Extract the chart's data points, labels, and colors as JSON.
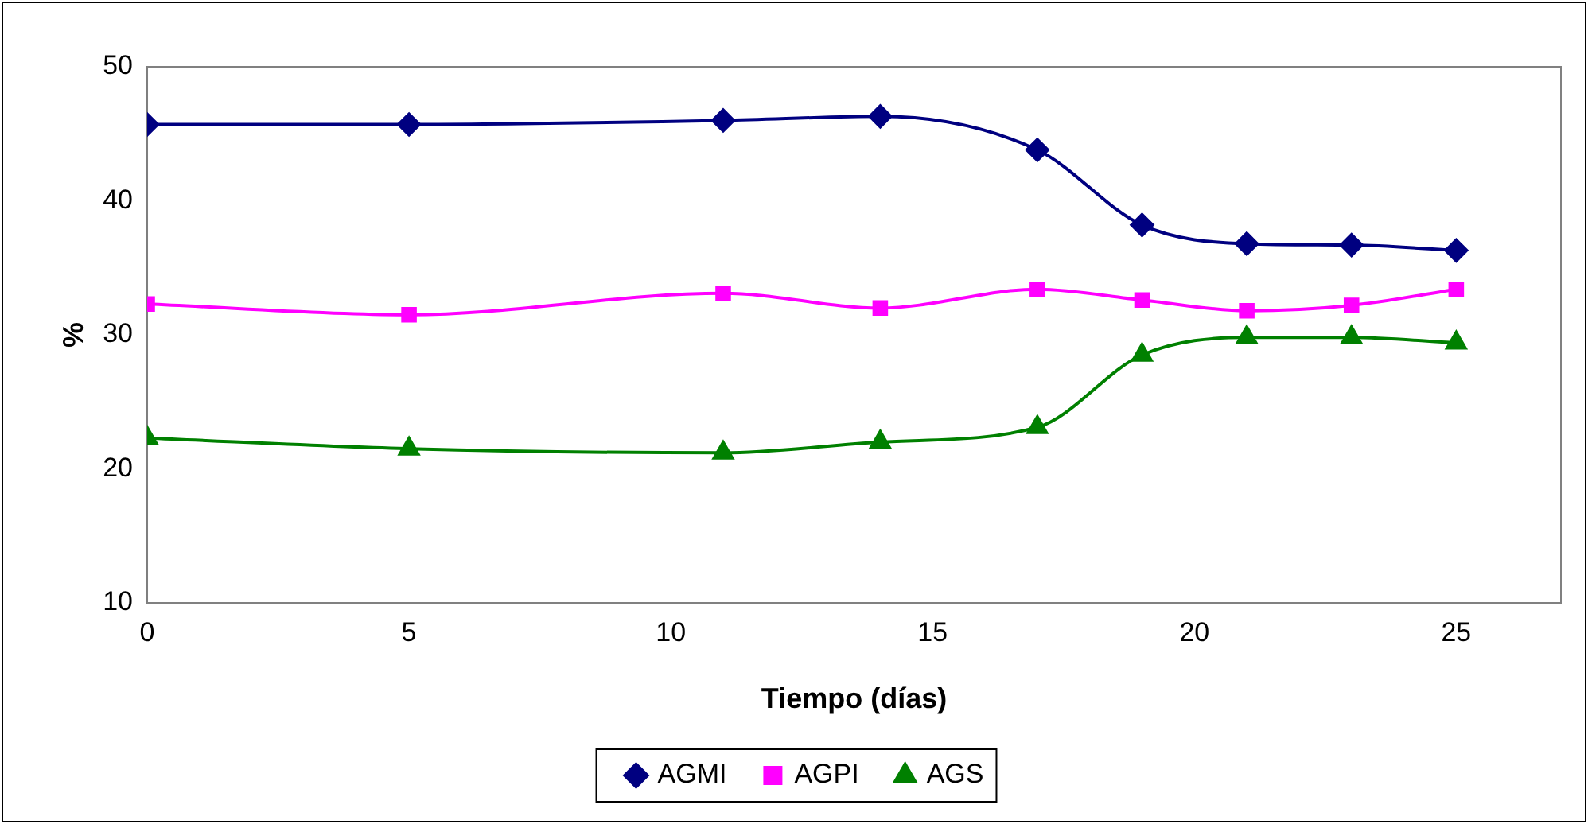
{
  "chart_data": {
    "type": "line",
    "xlabel": "Tiempo (días)",
    "ylabel": "%",
    "x": [
      0,
      5,
      11,
      14,
      17,
      19,
      21,
      23,
      25
    ],
    "series": [
      {
        "name": "AGMI",
        "color": "#000080",
        "marker": "diamond",
        "values": [
          45.7,
          45.7,
          46.0,
          46.3,
          43.8,
          38.2,
          36.8,
          36.7,
          36.3
        ]
      },
      {
        "name": "AGPI",
        "color": "#ff00ff",
        "marker": "square",
        "values": [
          32.3,
          31.5,
          33.1,
          32.0,
          33.4,
          32.6,
          31.8,
          32.2,
          33.4
        ]
      },
      {
        "name": "AGS",
        "color": "#008000",
        "marker": "triangle",
        "values": [
          22.3,
          21.5,
          21.2,
          22.0,
          23.1,
          28.5,
          29.8,
          29.8,
          29.4
        ]
      }
    ],
    "xlim": [
      0,
      27
    ],
    "xticks": [
      0,
      5,
      10,
      15,
      20,
      25
    ],
    "ylim": [
      10,
      50
    ],
    "yticks": [
      10,
      20,
      30,
      40,
      50
    ],
    "grid": false,
    "legend": "bottom",
    "line_style": "solid"
  }
}
